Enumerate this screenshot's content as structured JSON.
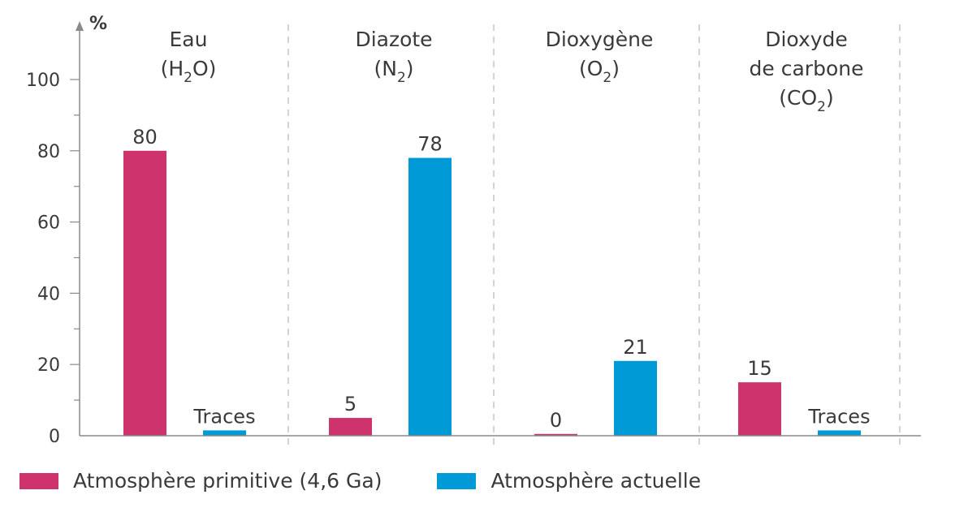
{
  "chart_data": {
    "type": "bar",
    "ylabel": "%",
    "ylim": [
      0,
      110
    ],
    "yticks": [
      "0",
      "20",
      "40",
      "60",
      "80",
      "100"
    ],
    "grid": false,
    "legend_placement": "bottom-left",
    "categories": [
      {
        "lines": [
          {
            "text": "Eau"
          },
          {
            "text": "(H",
            "sub": "2",
            "rest": "O)"
          }
        ]
      },
      {
        "lines": [
          {
            "text": "Diazote"
          },
          {
            "text": "(N",
            "sub": "2",
            "rest": ")"
          }
        ]
      },
      {
        "lines": [
          {
            "text": "Dioxygène"
          },
          {
            "text": "(O",
            "sub": "2",
            "rest": ")"
          }
        ]
      },
      {
        "lines": [
          {
            "text": "Dioxyde"
          },
          {
            "text": "de carbone"
          },
          {
            "text": "(CO",
            "sub": "2",
            "rest": ")"
          }
        ]
      }
    ],
    "series": [
      {
        "name": "Atmosphère primitive (4,6 Ga)",
        "color": "#cf336d",
        "values": [
          80,
          5,
          0.5,
          15
        ],
        "labels": [
          "80",
          "5",
          "0",
          "15"
        ]
      },
      {
        "name": "Atmosphère actuelle",
        "color": "#009ad7",
        "values": [
          1.5,
          78,
          21,
          1.5
        ],
        "labels": [
          "Traces",
          "78",
          "21",
          "Traces"
        ]
      }
    ]
  }
}
